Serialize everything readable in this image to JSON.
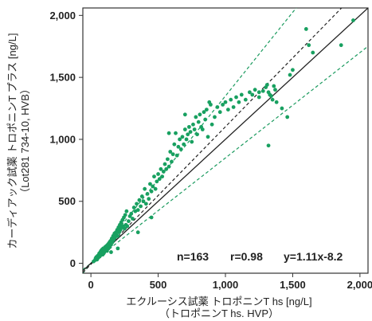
{
  "chart_data": {
    "type": "scatter",
    "xlabel": "エクルーシス試薬 トロポニンT hs [ng/L]",
    "xlabel_sub": "（トロポニンT hs. HVP）",
    "ylabel": "カーディアック試薬 トロポニンT プラス [ng/L]",
    "ylabel_sub": "（Lot281 734-10, HVB）",
    "xlim": [
      -60,
      2060
    ],
    "ylim": [
      -80,
      2060
    ],
    "xticks": [
      0,
      500,
      1000,
      1500,
      2000
    ],
    "yticks": [
      0,
      500,
      1000,
      1500,
      2000
    ],
    "xtick_labels": [
      "0",
      "500",
      "1,000",
      "1,500",
      "2,000"
    ],
    "ytick_labels": [
      "0",
      "500",
      "1,000",
      "1,500",
      "2,000"
    ],
    "grid": false,
    "stats": {
      "n": "n=163",
      "r": "r=0.98",
      "equation": "y=1.11x-8.2"
    },
    "lines": {
      "identity": {
        "slope": 1.0,
        "intercept": 0,
        "style": "solid",
        "color": "#222222"
      },
      "regression": {
        "slope": 1.11,
        "intercept": -8.2,
        "style": "dashed",
        "color": "#222222"
      },
      "upper_limit": {
        "slope": 1.35,
        "intercept": 0,
        "style": "dashed",
        "color": "#1a9a5e"
      },
      "lower_limit": {
        "slope": 0.85,
        "intercept": 0,
        "style": "dashed",
        "color": "#1a9a5e"
      }
    },
    "point_color": "#18a060",
    "points": [
      [
        20,
        15
      ],
      [
        30,
        25
      ],
      [
        35,
        40
      ],
      [
        40,
        50
      ],
      [
        45,
        30
      ],
      [
        50,
        60
      ],
      [
        55,
        45
      ],
      [
        60,
        70
      ],
      [
        62,
        80
      ],
      [
        65,
        55
      ],
      [
        70,
        90
      ],
      [
        72,
        65
      ],
      [
        75,
        100
      ],
      [
        78,
        75
      ],
      [
        80,
        85
      ],
      [
        82,
        110
      ],
      [
        85,
        95
      ],
      [
        88,
        70
      ],
      [
        90,
        105
      ],
      [
        92,
        120
      ],
      [
        95,
        80
      ],
      [
        98,
        115
      ],
      [
        100,
        90
      ],
      [
        105,
        130
      ],
      [
        110,
        110
      ],
      [
        115,
        140
      ],
      [
        120,
        100
      ],
      [
        125,
        150
      ],
      [
        130,
        120
      ],
      [
        135,
        160
      ],
      [
        140,
        130
      ],
      [
        145,
        180
      ],
      [
        150,
        150
      ],
      [
        155,
        200
      ],
      [
        160,
        170
      ],
      [
        165,
        220
      ],
      [
        170,
        190
      ],
      [
        175,
        240
      ],
      [
        180,
        210
      ],
      [
        185,
        250
      ],
      [
        190,
        230
      ],
      [
        195,
        270
      ],
      [
        200,
        220
      ],
      [
        205,
        290
      ],
      [
        210,
        250
      ],
      [
        215,
        310
      ],
      [
        220,
        270
      ],
      [
        225,
        330
      ],
      [
        230,
        290
      ],
      [
        235,
        350
      ],
      [
        240,
        300
      ],
      [
        245,
        370
      ],
      [
        250,
        280
      ],
      [
        255,
        390
      ],
      [
        260,
        310
      ],
      [
        265,
        420
      ],
      [
        270,
        300
      ],
      [
        280,
        340
      ],
      [
        290,
        380
      ],
      [
        300,
        400
      ],
      [
        310,
        360
      ],
      [
        320,
        450
      ],
      [
        330,
        420
      ],
      [
        340,
        480
      ],
      [
        350,
        430
      ],
      [
        360,
        510
      ],
      [
        370,
        460
      ],
      [
        380,
        540
      ],
      [
        390,
        500
      ],
      [
        400,
        600
      ],
      [
        410,
        480
      ],
      [
        420,
        560
      ],
      [
        430,
        520
      ],
      [
        440,
        640
      ],
      [
        450,
        580
      ],
      [
        460,
        620
      ],
      [
        470,
        700
      ],
      [
        480,
        600
      ],
      [
        490,
        660
      ],
      [
        500,
        720
      ],
      [
        510,
        680
      ],
      [
        520,
        760
      ],
      [
        530,
        700
      ],
      [
        540,
        740
      ],
      [
        550,
        800
      ],
      [
        560,
        760
      ],
      [
        570,
        840
      ],
      [
        580,
        780
      ],
      [
        590,
        900
      ],
      [
        600,
        820
      ],
      [
        610,
        880
      ],
      [
        620,
        960
      ],
      [
        630,
        1050
      ],
      [
        640,
        870
      ],
      [
        650,
        940
      ],
      [
        660,
        1000
      ],
      [
        670,
        920
      ],
      [
        680,
        1020
      ],
      [
        690,
        960
      ],
      [
        700,
        1080
      ],
      [
        710,
        1000
      ],
      [
        720,
        1040
      ],
      [
        730,
        1100
      ],
      [
        740,
        1060
      ],
      [
        750,
        980
      ],
      [
        760,
        1120
      ],
      [
        770,
        1080
      ],
      [
        780,
        1180
      ],
      [
        790,
        1040
      ],
      [
        800,
        1140
      ],
      [
        810,
        1200
      ],
      [
        820,
        1100
      ],
      [
        830,
        1080
      ],
      [
        840,
        1220
      ],
      [
        850,
        1160
      ],
      [
        860,
        1240
      ],
      [
        870,
        1020
      ],
      [
        880,
        1300
      ],
      [
        890,
        1280
      ],
      [
        900,
        1120
      ],
      [
        920,
        1180
      ],
      [
        940,
        1260
      ],
      [
        960,
        1220
      ],
      [
        980,
        1280
      ],
      [
        1000,
        1300
      ],
      [
        1020,
        1240
      ],
      [
        1040,
        1320
      ],
      [
        1060,
        1260
      ],
      [
        1080,
        1340
      ],
      [
        1100,
        1300
      ],
      [
        1120,
        1360
      ],
      [
        1150,
        1320
      ],
      [
        1180,
        1380
      ],
      [
        1200,
        1360
      ],
      [
        1220,
        1400
      ],
      [
        1250,
        1340
      ],
      [
        1280,
        1390
      ],
      [
        1300,
        1420
      ],
      [
        1310,
        1440
      ],
      [
        1320,
        1380
      ],
      [
        1330,
        1360
      ],
      [
        1340,
        1350
      ],
      [
        1350,
        1320
      ],
      [
        1360,
        1430
      ],
      [
        1370,
        1400
      ],
      [
        1380,
        1300
      ],
      [
        1320,
        950
      ],
      [
        1460,
        1180
      ],
      [
        1480,
        1520
      ],
      [
        1500,
        1560
      ],
      [
        1600,
        1890
      ],
      [
        1620,
        1760
      ],
      [
        1650,
        1700
      ],
      [
        1860,
        1760
      ],
      [
        1950,
        1960
      ],
      [
        1420,
        1250
      ],
      [
        1250,
        1380
      ],
      [
        580,
        1050
      ],
      [
        700,
        1200
      ],
      [
        200,
        120
      ],
      [
        150,
        90
      ],
      [
        350,
        250
      ],
      [
        450,
        370
      ]
    ]
  }
}
